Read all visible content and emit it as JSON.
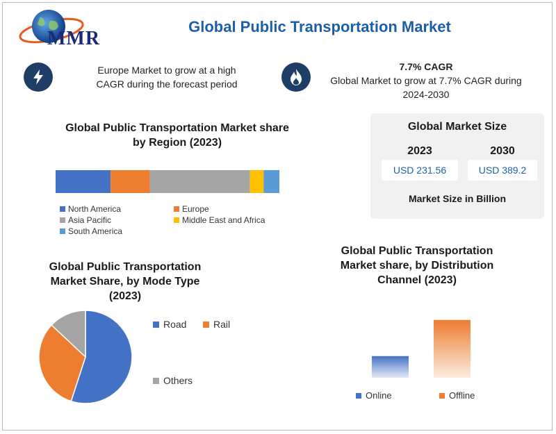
{
  "header": {
    "logo_text": "MMR",
    "title": "Global Public Transportation Market"
  },
  "highlights": {
    "left": {
      "icon": "lightning-icon",
      "text_line1": "Europe Market to grow at a high",
      "text_line2": "CAGR during the forecast period"
    },
    "right": {
      "icon": "flame-icon",
      "heading": "7.7% CAGR",
      "text_line1": "Global Market to grow at 7.7% CAGR during",
      "text_line2": "2024-2030"
    }
  },
  "market_size": {
    "title": "Global Market Size",
    "years": [
      "2023",
      "2030"
    ],
    "values": [
      "USD 231.56",
      "USD 389.2"
    ],
    "footer": "Market Size in Billion"
  },
  "colors": {
    "blue": "#4472c4",
    "orange": "#ed7d31",
    "gray": "#a5a5a5",
    "yellow": "#ffc000",
    "lightblue": "#5b9bd5",
    "accent": "#1d5fa7"
  },
  "chart_data": [
    {
      "type": "bar",
      "orientation": "horizontal-stacked",
      "title_line1": "Global Public Transportation Market share",
      "title_line2": "by Region (2023)",
      "series": [
        {
          "name": "North America",
          "value": 28,
          "color": "#4472c4"
        },
        {
          "name": "Europe",
          "value": 20,
          "color": "#ed7d31"
        },
        {
          "name": "Asia Pacific",
          "value": 51,
          "color": "#a5a5a5"
        },
        {
          "name": "Middle East and Africa",
          "value": 7,
          "color": "#ffc000"
        },
        {
          "name": "South America",
          "value": 8,
          "color": "#5b9bd5"
        }
      ]
    },
    {
      "type": "pie",
      "title_line1": "Global Public Transportation",
      "title_line2": "Market Share, by Mode Type",
      "title_line3": "(2023)",
      "slices": [
        {
          "name": "Road",
          "value": 55,
          "color": "#4472c4"
        },
        {
          "name": "Rail",
          "value": 32,
          "color": "#ed7d31"
        },
        {
          "name": "Others",
          "value": 13,
          "color": "#a5a5a5"
        }
      ]
    },
    {
      "type": "bar",
      "title_line1": "Global Public Transportation",
      "title_line2": "Market share, by Distribution",
      "title_line3": "Channel (2023)",
      "categories": [
        "Online",
        "Offline"
      ],
      "values": [
        30,
        80
      ],
      "colors": [
        "#4472c4",
        "#ed7d31"
      ],
      "ylim": [
        0,
        100
      ]
    }
  ]
}
